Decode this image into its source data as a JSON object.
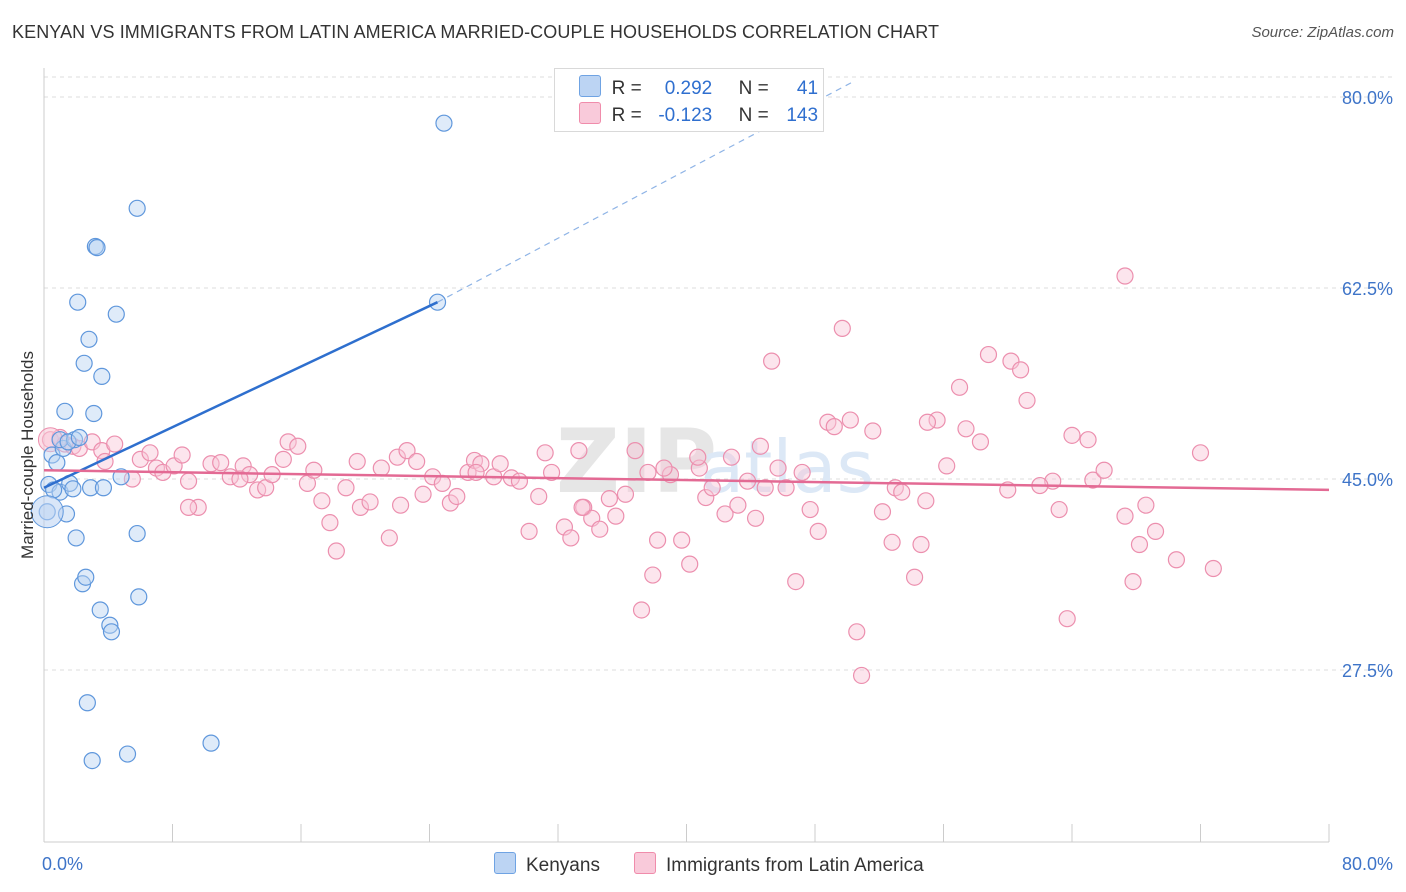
{
  "title": "KENYAN VS IMMIGRANTS FROM LATIN AMERICA MARRIED-COUPLE HOUSEHOLDS CORRELATION CHART",
  "source": "Source: ZipAtlas.com",
  "legend_top": {
    "rows": [
      {
        "r_label": "R =",
        "r_value": "0.292",
        "n_label": "N =",
        "n_value": "41"
      },
      {
        "r_label": "R =",
        "r_value": "-0.123",
        "n_label": "N =",
        "n_value": "143"
      }
    ]
  },
  "chart_data": {
    "type": "scatter",
    "title": "KENYAN VS IMMIGRANTS FROM LATIN AMERICA MARRIED-COUPLE HOUSEHOLDS CORRELATION CHART",
    "xlabel": "",
    "ylabel": "Married-couple Households",
    "xlim": [
      0,
      80
    ],
    "ylim": [
      14,
      83
    ],
    "x_tick_labels": [
      "0.0%",
      "80.0%"
    ],
    "y_tick_labels": [
      "80.0%",
      "62.5%",
      "45.0%",
      "27.5%"
    ],
    "y_ticks": [
      80.0,
      62.5,
      45.0,
      27.5
    ],
    "grid": true,
    "legend_position": "bottom",
    "colors": {
      "kenyans": "#6fa3e3",
      "latin": "#f08cab",
      "kenyans_line": "#2e6fce",
      "latin_line": "#e36a94",
      "tick": "#3e74c8"
    },
    "series": [
      {
        "name": "Kenyans",
        "color": "#6fa3e3",
        "regression": {
          "x0": 0,
          "y0": 44.2,
          "x1": 24.5,
          "y1": 61.2,
          "dashed_to_x": 50.5,
          "dashed_to_y": 81.5
        },
        "points": [
          [
            0.2,
            42.0
          ],
          [
            0.3,
            44.5
          ],
          [
            0.5,
            47.2
          ],
          [
            0.8,
            46.5
          ],
          [
            1.0,
            43.8
          ],
          [
            1.2,
            47.8
          ],
          [
            1.0,
            48.6
          ],
          [
            1.3,
            51.2
          ],
          [
            1.4,
            41.8
          ],
          [
            1.6,
            44.6
          ],
          [
            1.9,
            48.6
          ],
          [
            1.8,
            44.1
          ],
          [
            2.0,
            39.6
          ],
          [
            2.1,
            61.2
          ],
          [
            2.4,
            35.4
          ],
          [
            2.5,
            55.6
          ],
          [
            2.6,
            36.0
          ],
          [
            2.7,
            24.5
          ],
          [
            2.8,
            57.8
          ],
          [
            2.9,
            44.2
          ],
          [
            3.0,
            19.2
          ],
          [
            3.1,
            51.0
          ],
          [
            3.2,
            66.3
          ],
          [
            3.3,
            66.2
          ],
          [
            3.5,
            33.0
          ],
          [
            3.6,
            54.4
          ],
          [
            3.7,
            44.2
          ],
          [
            4.1,
            31.6
          ],
          [
            4.2,
            31.0
          ],
          [
            4.5,
            60.1
          ],
          [
            4.8,
            45.2
          ],
          [
            5.2,
            19.8
          ],
          [
            5.8,
            40.0
          ],
          [
            5.9,
            34.2
          ],
          [
            5.8,
            69.8
          ],
          [
            10.4,
            20.8
          ],
          [
            24.5,
            61.2
          ],
          [
            24.9,
            77.6
          ],
          [
            1.5,
            48.4
          ],
          [
            0.6,
            44.0
          ],
          [
            2.2,
            48.8
          ]
        ]
      },
      {
        "name": "Immigrants from Latin America",
        "color": "#f08cab",
        "regression": {
          "x0": 0,
          "y0": 45.8,
          "x1": 80,
          "y1": 44.0
        },
        "points": [
          [
            0.4,
            48.6
          ],
          [
            1.0,
            48.8
          ],
          [
            1.3,
            48.2
          ],
          [
            1.8,
            48.0
          ],
          [
            2.2,
            47.8
          ],
          [
            3.0,
            48.4
          ],
          [
            3.6,
            47.6
          ],
          [
            4.4,
            48.2
          ],
          [
            5.5,
            45.0
          ],
          [
            6.0,
            46.8
          ],
          [
            6.6,
            47.4
          ],
          [
            7.0,
            46.0
          ],
          [
            7.4,
            45.6
          ],
          [
            8.1,
            46.2
          ],
          [
            8.6,
            47.2
          ],
          [
            9.0,
            44.8
          ],
          [
            9.6,
            42.4
          ],
          [
            10.4,
            46.4
          ],
          [
            11.0,
            46.5
          ],
          [
            11.6,
            45.2
          ],
          [
            12.4,
            46.2
          ],
          [
            12.8,
            45.4
          ],
          [
            13.3,
            44.0
          ],
          [
            13.8,
            44.2
          ],
          [
            14.2,
            45.4
          ],
          [
            14.9,
            46.8
          ],
          [
            15.2,
            48.4
          ],
          [
            15.8,
            48.0
          ],
          [
            16.4,
            44.6
          ],
          [
            16.8,
            45.8
          ],
          [
            17.3,
            43.0
          ],
          [
            17.8,
            41.0
          ],
          [
            18.2,
            38.4
          ],
          [
            18.8,
            44.2
          ],
          [
            19.5,
            46.6
          ],
          [
            19.7,
            42.4
          ],
          [
            20.3,
            42.9
          ],
          [
            21.0,
            46.0
          ],
          [
            21.5,
            39.6
          ],
          [
            22.0,
            47.0
          ],
          [
            22.2,
            42.6
          ],
          [
            22.6,
            47.6
          ],
          [
            23.2,
            46.6
          ],
          [
            23.6,
            43.6
          ],
          [
            24.2,
            45.2
          ],
          [
            24.8,
            44.6
          ],
          [
            25.3,
            42.8
          ],
          [
            25.7,
            43.4
          ],
          [
            26.4,
            45.6
          ],
          [
            26.8,
            46.7
          ],
          [
            27.2,
            46.4
          ],
          [
            28.0,
            45.2
          ],
          [
            28.4,
            46.4
          ],
          [
            29.1,
            45.1
          ],
          [
            29.6,
            44.8
          ],
          [
            30.2,
            40.2
          ],
          [
            30.8,
            43.4
          ],
          [
            31.2,
            47.4
          ],
          [
            31.6,
            45.6
          ],
          [
            32.4,
            40.6
          ],
          [
            32.8,
            39.6
          ],
          [
            33.3,
            47.6
          ],
          [
            33.6,
            42.4
          ],
          [
            34.1,
            41.4
          ],
          [
            34.6,
            40.4
          ],
          [
            35.2,
            43.2
          ],
          [
            35.6,
            41.6
          ],
          [
            36.2,
            43.6
          ],
          [
            36.8,
            47.6
          ],
          [
            37.2,
            33.0
          ],
          [
            37.6,
            45.6
          ],
          [
            37.9,
            36.2
          ],
          [
            38.2,
            39.4
          ],
          [
            39.0,
            45.4
          ],
          [
            39.7,
            39.4
          ],
          [
            40.2,
            37.2
          ],
          [
            40.8,
            46.0
          ],
          [
            41.2,
            43.3
          ],
          [
            41.6,
            44.2
          ],
          [
            42.4,
            41.8
          ],
          [
            42.8,
            47.0
          ],
          [
            43.2,
            42.6
          ],
          [
            43.8,
            44.8
          ],
          [
            44.3,
            41.4
          ],
          [
            44.9,
            44.2
          ],
          [
            45.3,
            55.8
          ],
          [
            45.7,
            46.0
          ],
          [
            46.2,
            44.2
          ],
          [
            46.8,
            35.6
          ],
          [
            47.2,
            45.6
          ],
          [
            47.7,
            42.2
          ],
          [
            48.2,
            40.2
          ],
          [
            48.8,
            50.2
          ],
          [
            49.2,
            49.8
          ],
          [
            49.7,
            58.8
          ],
          [
            50.2,
            50.4
          ],
          [
            50.6,
            31.0
          ],
          [
            50.9,
            27.0
          ],
          [
            51.6,
            49.4
          ],
          [
            52.2,
            42.0
          ],
          [
            52.8,
            39.2
          ],
          [
            53.0,
            44.2
          ],
          [
            53.4,
            43.8
          ],
          [
            54.2,
            36.0
          ],
          [
            54.6,
            39.0
          ],
          [
            54.9,
            43.0
          ],
          [
            55.6,
            50.4
          ],
          [
            56.2,
            46.2
          ],
          [
            57.0,
            53.4
          ],
          [
            57.4,
            49.6
          ],
          [
            58.3,
            48.4
          ],
          [
            58.8,
            56.4
          ],
          [
            60.2,
            55.8
          ],
          [
            60.8,
            55.0
          ],
          [
            61.2,
            52.2
          ],
          [
            62.8,
            44.8
          ],
          [
            63.2,
            42.2
          ],
          [
            63.7,
            32.2
          ],
          [
            64.0,
            49.0
          ],
          [
            65.0,
            48.6
          ],
          [
            65.3,
            44.9
          ],
          [
            66.0,
            45.8
          ],
          [
            67.3,
            41.6
          ],
          [
            67.8,
            35.6
          ],
          [
            68.2,
            39.0
          ],
          [
            68.6,
            42.6
          ],
          [
            69.2,
            40.2
          ],
          [
            70.5,
            37.6
          ],
          [
            72.0,
            47.4
          ],
          [
            72.8,
            36.8
          ],
          [
            67.3,
            63.6
          ],
          [
            40.7,
            47.0
          ],
          [
            33.5,
            42.4
          ],
          [
            9.0,
            42.4
          ],
          [
            26.9,
            45.6
          ],
          [
            38.6,
            46.0
          ],
          [
            44.6,
            48.0
          ],
          [
            55.0,
            50.2
          ],
          [
            60.0,
            44.0
          ],
          [
            62.0,
            44.4
          ],
          [
            3.8,
            46.6
          ],
          [
            12.2,
            45.0
          ]
        ]
      }
    ]
  }
}
